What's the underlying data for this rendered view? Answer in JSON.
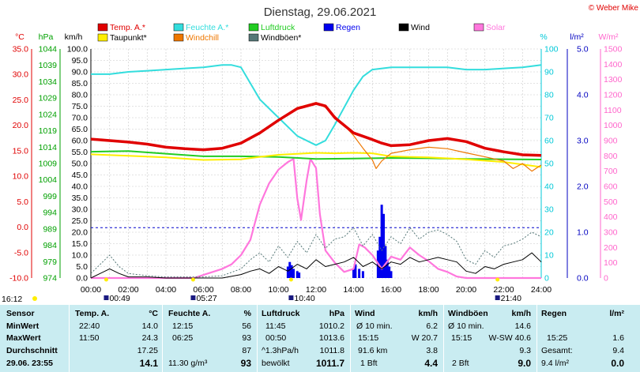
{
  "chart_data": {
    "type": "line",
    "title": "Dienstag, 29.06.2021",
    "copyright": "© Weber Mike",
    "x_ticks": [
      "00:00",
      "02:00",
      "04:00",
      "06:00",
      "08:00",
      "10:00",
      "12:00",
      "14:00",
      "16:00",
      "18:00",
      "20:00",
      "22:00",
      "24:00"
    ],
    "xlim": [
      0,
      24
    ],
    "axes": {
      "temp": {
        "unit": "°C",
        "range": [
          -10,
          35
        ],
        "ticks": [
          "35.0",
          "30.0",
          "25.0",
          "20.0",
          "15.0",
          "10.0",
          "5.0",
          "0.0",
          "-5.0",
          "-10.0"
        ],
        "color": "#e00000"
      },
      "press": {
        "unit": "hPa",
        "range": [
          974,
          1044
        ],
        "ticks": [
          "1044",
          "1039",
          "1034",
          "1029",
          "1024",
          "1019",
          "1014",
          "1009",
          "1004",
          "999",
          "994",
          "989",
          "984",
          "979",
          "974"
        ],
        "color": "#00a000"
      },
      "wind": {
        "unit": "km/h",
        "range": [
          0,
          100
        ],
        "ticks": [
          "100.0",
          "95.0",
          "90.0",
          "85.0",
          "80.0",
          "75.0",
          "70.0",
          "65.0",
          "60.0",
          "55.0",
          "50.0",
          "45.0",
          "40.0",
          "35.0",
          "30.0",
          "25.0",
          "20.0",
          "15.0",
          "10.0",
          "5.0",
          "0.0"
        ],
        "color": "#000000"
      },
      "hum": {
        "unit": "%",
        "range": [
          0,
          100
        ],
        "ticks": [
          "100",
          "90",
          "80",
          "70",
          "60",
          "50",
          "40",
          "30",
          "20",
          "10",
          "0"
        ],
        "color": "#00c8d8"
      },
      "rain": {
        "unit": "l/m²",
        "range": [
          0,
          5
        ],
        "ticks": [
          "5.0",
          "4.0",
          "3.0",
          "2.0",
          "1.0",
          "0.0"
        ],
        "color": "#0000c0"
      },
      "solar": {
        "unit": "W/m²",
        "range": [
          0,
          1500
        ],
        "ticks": [
          "1500",
          "1400",
          "1300",
          "1200",
          "1100",
          "1000",
          "900",
          "800",
          "700",
          "600",
          "500",
          "400",
          "300",
          "200",
          "100",
          "0"
        ],
        "color": "#ff66cc"
      }
    },
    "legend": [
      {
        "label": "Temp. A.*",
        "color": "#e00000"
      },
      {
        "label": "Feuchte A.*",
        "color": "#33dddd"
      },
      {
        "label": "Luftdruck",
        "color": "#22cc22"
      },
      {
        "label": "Regen",
        "color": "#0000ee"
      },
      {
        "label": "Wind",
        "color": "#000000"
      },
      {
        "label": "Solar",
        "color": "#ff77dd"
      },
      {
        "label": "Taupunkt*",
        "color": "#ffee00"
      },
      {
        "label": "Windchill",
        "color": "#ee7700"
      },
      {
        "label": "Windböen*",
        "color": "#557777"
      }
    ],
    "series": [
      {
        "name": "Temp. A.*",
        "axis": "temp",
        "color": "#e00000",
        "x": [
          0,
          1,
          2,
          3,
          4,
          5,
          6,
          7,
          8,
          9,
          10,
          11,
          12,
          12.5,
          13,
          14,
          15,
          15.5,
          16,
          17,
          18,
          19,
          20,
          21,
          22,
          23,
          24
        ],
        "y": [
          17.3,
          17,
          16.7,
          16.3,
          15.7,
          15.4,
          15.2,
          15.5,
          16.5,
          18.5,
          21,
          23.3,
          24.3,
          23.8,
          21.5,
          18.5,
          17.2,
          16.5,
          16,
          16.2,
          17,
          17.4,
          16.8,
          15.5,
          14.8,
          14.2,
          14.1
        ]
      },
      {
        "name": "Feuchte A.*",
        "axis": "hum",
        "color": "#33dddd",
        "x": [
          0,
          1,
          2,
          3,
          4,
          5,
          6,
          7,
          7.5,
          8,
          8.5,
          9,
          10,
          11,
          12,
          12.5,
          13,
          14,
          14.5,
          15,
          16,
          17,
          18,
          19,
          20,
          21,
          22,
          23,
          24
        ],
        "y": [
          89,
          89,
          90,
          90.5,
          91,
          91.5,
          92,
          93,
          93,
          92,
          85,
          78,
          70,
          62,
          58,
          60,
          67,
          82,
          88,
          91,
          92,
          92,
          92,
          92,
          91,
          91,
          91.5,
          92,
          93
        ]
      },
      {
        "name": "Luftdruck",
        "axis": "press",
        "color": "#22cc22",
        "x": [
          0,
          2,
          4,
          6,
          8,
          10,
          12,
          14,
          15,
          16,
          18,
          20,
          22,
          24
        ],
        "y": [
          1012.6,
          1012.8,
          1012,
          1011.2,
          1011.2,
          1011,
          1010.4,
          1010.5,
          1010.6,
          1010.7,
          1010.6,
          1010.4,
          1010.3,
          1010.2
        ]
      },
      {
        "name": "Taupunkt*",
        "axis": "temp",
        "color": "#ffee00",
        "x": [
          0,
          2,
          4,
          6,
          8,
          9,
          10,
          11,
          12,
          13,
          14,
          15,
          16,
          18,
          20,
          22,
          23,
          24
        ],
        "y": [
          14.3,
          14,
          13.7,
          13.2,
          13.3,
          13.8,
          14.2,
          14.4,
          14.6,
          14.5,
          14.6,
          14.5,
          13.9,
          13.7,
          13.3,
          12.8,
          12.3,
          11.8
        ]
      },
      {
        "name": "Windchill",
        "axis": "temp",
        "color": "#ee7700",
        "x": [
          8,
          9,
          10,
          11,
          12,
          12.5,
          13,
          13.5,
          14,
          14.5,
          15,
          15.2,
          15.5,
          16,
          17,
          18,
          19,
          20,
          21,
          22,
          22.5,
          23,
          23.5,
          24
        ],
        "y": [
          16.5,
          18.3,
          21,
          23.5,
          24.5,
          23.5,
          21.8,
          20,
          18,
          15.5,
          13.2,
          11.5,
          13,
          14.5,
          15.2,
          15.7,
          15.4,
          14.6,
          13.8,
          13,
          11.5,
          12.5,
          11,
          12.2
        ]
      },
      {
        "name": "Wind",
        "axis": "wind",
        "color": "#000000",
        "x": [
          0,
          0.5,
          1,
          1.5,
          2,
          3,
          4,
          5,
          6,
          7,
          8,
          8.5,
          9,
          9.5,
          10,
          10.5,
          11,
          11.5,
          12,
          12.5,
          13,
          13.5,
          14,
          14.5,
          15,
          15.5,
          16,
          16.5,
          17,
          17.5,
          18,
          18.5,
          19,
          19.5,
          20,
          20.5,
          21,
          21.5,
          22,
          22.5,
          23,
          23.5,
          24
        ],
        "y": [
          0,
          2,
          4,
          2,
          0.5,
          0.5,
          0,
          0,
          0,
          0,
          1.5,
          3,
          4,
          2,
          5,
          3,
          6,
          4,
          8,
          5,
          6,
          7,
          9,
          5,
          7,
          4,
          7,
          6,
          9,
          7,
          8,
          9,
          8,
          7,
          3,
          2,
          5,
          4,
          6,
          7,
          8,
          11,
          7
        ]
      },
      {
        "name": "Windböen*",
        "axis": "wind",
        "color": "#557777",
        "x": [
          0,
          0.5,
          1,
          1.5,
          2,
          3,
          4,
          5,
          6,
          7,
          8,
          8.5,
          9,
          9.5,
          10,
          10.5,
          11,
          11.5,
          12,
          12.5,
          13,
          13.5,
          14,
          14.5,
          15,
          15.5,
          16,
          16.5,
          17,
          17.5,
          18,
          18.5,
          19,
          19.5,
          20,
          20.5,
          21,
          21.5,
          22,
          22.5,
          23,
          23.5,
          24
        ],
        "y": [
          2,
          6,
          10,
          5,
          2,
          1,
          0.5,
          0.5,
          0.5,
          1,
          4,
          8,
          11,
          7,
          14,
          9,
          16,
          11,
          19,
          13,
          17,
          18,
          22,
          14,
          19,
          12,
          18,
          15,
          22,
          17,
          20,
          21,
          19,
          16,
          8,
          6,
          12,
          9,
          14,
          15,
          17,
          20,
          18
        ]
      },
      {
        "name": "Solar",
        "axis": "solar",
        "color": "#ff77dd",
        "x": [
          0,
          5.5,
          6,
          7,
          7.5,
          8,
          8.5,
          9,
          9.5,
          10,
          10.5,
          10.8,
          11,
          11.2,
          11.5,
          11.7,
          12,
          12.2,
          12.5,
          13,
          13.5,
          14,
          14.3,
          14.6,
          15,
          15.5,
          16,
          16.5,
          17,
          17.5,
          18,
          18.5,
          19,
          19.5,
          20,
          20.5,
          21,
          21.5,
          22,
          24
        ],
        "y": [
          0,
          0,
          20,
          60,
          90,
          150,
          250,
          480,
          620,
          710,
          760,
          780,
          520,
          380,
          640,
          780,
          720,
          420,
          180,
          100,
          40,
          60,
          220,
          200,
          150,
          60,
          140,
          120,
          200,
          150,
          110,
          60,
          40,
          10,
          0,
          0,
          0,
          0,
          0,
          0
        ]
      }
    ],
    "rain_bars": [
      {
        "x": 10.5,
        "y": 0.25
      },
      {
        "x": 10.6,
        "y": 0.35
      },
      {
        "x": 10.7,
        "y": 0.28
      },
      {
        "x": 10.8,
        "y": 0.2
      },
      {
        "x": 11.0,
        "y": 0.15
      },
      {
        "x": 11.1,
        "y": 0.12
      },
      {
        "x": 14.0,
        "y": 0.2
      },
      {
        "x": 14.1,
        "y": 0.3
      },
      {
        "x": 14.3,
        "y": 0.2
      },
      {
        "x": 14.5,
        "y": 0.15
      },
      {
        "x": 15.3,
        "y": 0.6
      },
      {
        "x": 15.4,
        "y": 0.9
      },
      {
        "x": 15.5,
        "y": 1.6
      },
      {
        "x": 15.6,
        "y": 1.4
      },
      {
        "x": 15.7,
        "y": 0.7
      },
      {
        "x": 15.8,
        "y": 0.4
      },
      {
        "x": 15.9,
        "y": 0.25
      },
      {
        "x": 16.0,
        "y": 0.15
      }
    ],
    "dashed_line_rain": 1.1,
    "sun_markers": [
      {
        "label": "00:49",
        "x": 0.82
      },
      {
        "label": "05:27",
        "x": 5.45
      },
      {
        "label": "10:40",
        "x": 10.67
      },
      {
        "label": "21:40",
        "x": 21.67
      }
    ],
    "left_time_label": "16:12"
  },
  "table": {
    "row_labels": [
      "Sensor",
      "MinWert",
      "MaxWert",
      "Durchschnitt",
      "29.06. 23:55"
    ],
    "temp": {
      "header": "Temp. A.",
      "unit": "°C",
      "rows": [
        [
          "22:40",
          "14.0"
        ],
        [
          "11:50",
          "24.3"
        ],
        [
          "",
          "17.25"
        ],
        [
          "",
          "14.1"
        ]
      ]
    },
    "hum": {
      "header": "Feuchte A.",
      "unit": "%",
      "rows": [
        [
          "12:15",
          "56"
        ],
        [
          "06:25",
          "93"
        ],
        [
          "",
          "87"
        ],
        [
          "11.30 g/m³",
          "93"
        ]
      ]
    },
    "press": {
      "header": "Luftdruck",
      "unit": "hPa",
      "rows": [
        [
          "11:45",
          "1010.2"
        ],
        [
          "00:50",
          "1013.6"
        ],
        [
          "^1.3hPa/h",
          "1011.8"
        ],
        [
          "bewölkt",
          "1011.7"
        ]
      ]
    },
    "wind": {
      "header": "Wind",
      "unit": "km/h",
      "rows": [
        [
          "Ø 10 min.",
          "6.2"
        ],
        [
          "15:15",
          "W 20.7"
        ],
        [
          "91.6 km",
          "3.8"
        ],
        [
          "1 Bft",
          "4.4"
        ]
      ]
    },
    "gust": {
      "header": "Windböen",
      "unit": "km/h",
      "rows": [
        [
          "Ø 10 min.",
          "14.6"
        ],
        [
          "15:15",
          "W-SW 40.6"
        ],
        [
          "",
          "9.3"
        ],
        [
          "2 Bft",
          "9.0"
        ]
      ]
    },
    "rain": {
      "header": "Regen",
      "unit": "l/m²",
      "rows": [
        [
          "",
          ""
        ],
        [
          "15:25",
          "1.6"
        ],
        [
          "Gesamt:",
          "9.4"
        ],
        [
          "9.4 l/m²",
          "0.0"
        ]
      ]
    }
  }
}
